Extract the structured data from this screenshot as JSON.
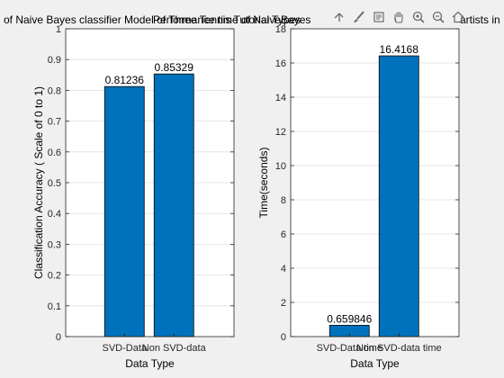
{
  "colors": {
    "figure_bg": "#f0f0f0",
    "axes_bg": "#ffffff",
    "bar": "#0072bd",
    "axis": "#262626",
    "grid": "#dfdfdf",
    "tick_text": "#262626"
  },
  "toolbar": {
    "icons": [
      "save-icon",
      "brush-icon",
      "data-tips-icon",
      "pan-icon",
      "zoom-in-icon",
      "zoom-out-icon",
      "home-icon"
    ]
  },
  "chart_data": [
    {
      "type": "bar",
      "title": "of Naive Bayes classifier Model of Three Tennis Tutorial Types",
      "xlabel": "Data Type",
      "ylabel": "Classification Accuracy ( Scale of 0 to 1)",
      "categories": [
        "SVD-Data",
        "Non SVD-data"
      ],
      "values": [
        0.81236,
        0.85329
      ],
      "data_labels": [
        "0.81236",
        "0.85329"
      ],
      "ylim": [
        0,
        1
      ],
      "yticks": [
        "0",
        "0.1",
        "0.2",
        "0.3",
        "0.4",
        "0.5",
        "0.6",
        "0.7",
        "0.8",
        "0.9",
        "1"
      ],
      "grid": true
    },
    {
      "type": "bar",
      "title": "Performance time of NaiveBayes",
      "title_tail": "artists in",
      "xlabel": "Data Type",
      "ylabel": "Time(seconds)",
      "categories": [
        "SVD-Data time",
        "Non SVD-data time"
      ],
      "values": [
        0.659846,
        16.4168
      ],
      "data_labels": [
        "0.659846",
        "16.4168"
      ],
      "ylim": [
        0,
        18
      ],
      "yticks": [
        "0",
        "2",
        "4",
        "6",
        "8",
        "10",
        "12",
        "14",
        "16",
        "18"
      ],
      "grid": true
    }
  ]
}
